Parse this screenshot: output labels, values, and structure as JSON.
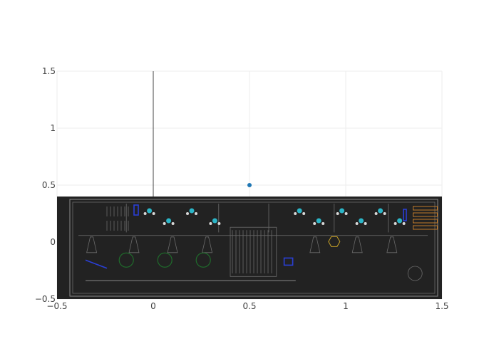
{
  "chart_data": {
    "type": "scatter",
    "title": "",
    "xlabel": "",
    "ylabel": "",
    "xlim": [
      -0.5,
      1.5
    ],
    "ylim": [
      -0.5,
      1.5
    ],
    "x_ticks": [
      -0.5,
      0,
      0.5,
      1,
      1.5
    ],
    "x_tick_labels": [
      "−0.5",
      "0",
      "0.5",
      "1",
      "1.5"
    ],
    "y_ticks": [
      -0.5,
      0,
      0.5,
      1,
      1.5
    ],
    "y_tick_labels": [
      "−0.5",
      "0",
      "0.5",
      "1",
      "1.5"
    ],
    "grid": true,
    "zeroline_x": true,
    "series": [
      {
        "x": [
          0.5
        ],
        "y": [
          0.5
        ],
        "color": "#1f77b4"
      }
    ],
    "background_image": {
      "description": "floor plan",
      "x_range": [
        -0.5,
        1.5
      ],
      "y_range": [
        -0.5,
        0.4
      ],
      "background_color": "#222222"
    }
  }
}
